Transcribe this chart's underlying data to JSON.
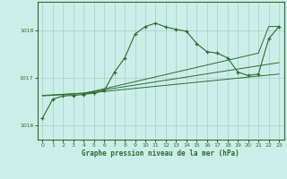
{
  "title": "Graphe pression niveau de la mer (hPa)",
  "bg_color": "#cceee8",
  "grid_color": "#aacccc",
  "line_color": "#2d6b2d",
  "xlim": [
    -0.5,
    23.5
  ],
  "ylim": [
    1015.7,
    1018.6
  ],
  "yticks": [
    1016,
    1017,
    1018
  ],
  "xticks": [
    0,
    1,
    2,
    3,
    4,
    5,
    6,
    7,
    8,
    9,
    10,
    11,
    12,
    13,
    14,
    15,
    16,
    17,
    18,
    19,
    20,
    21,
    22,
    23
  ],
  "main_x": [
    0,
    1,
    2,
    3,
    4,
    5,
    6,
    7,
    8,
    9,
    10,
    11,
    12,
    13,
    14,
    15,
    16,
    17,
    18,
    19,
    20,
    21,
    22,
    23
  ],
  "main_y": [
    1016.15,
    1016.55,
    1016.62,
    1016.63,
    1016.65,
    1016.68,
    1016.73,
    1017.12,
    1017.42,
    1017.92,
    1018.08,
    1018.15,
    1018.07,
    1018.02,
    1017.98,
    1017.72,
    1017.55,
    1017.52,
    1017.42,
    1017.12,
    1017.05,
    1017.08,
    1017.82,
    1018.08
  ],
  "line2_x": [
    0,
    4,
    23
  ],
  "line2_y": [
    1016.62,
    1016.67,
    1017.08
  ],
  "line3_x": [
    0,
    4,
    23
  ],
  "line3_y": [
    1016.63,
    1016.68,
    1017.32
  ],
  "line4_x": [
    4,
    15,
    21,
    22,
    23
  ],
  "line4_y": [
    1016.67,
    1017.22,
    1017.52,
    1018.08,
    1018.08
  ]
}
